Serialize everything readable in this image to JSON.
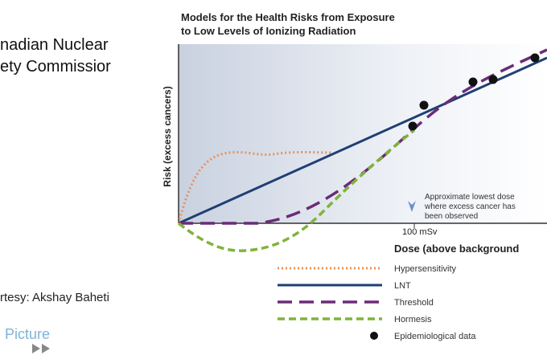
{
  "slide": {
    "heading": [
      "nadian Nuclear",
      "ety Commissior"
    ],
    "courtesy": "rtesy: Akshay Baheti",
    "logo": "Picture"
  },
  "diagram": {
    "title": [
      "Models for the Health Risks from Exposure",
      "to Low Levels of Ionizing Radiation"
    ],
    "y_label": "Risk (excess cancers)",
    "x_label": "Dose (above background",
    "x_marker": "100 mSv",
    "annotation": [
      "Approximate lowest dose",
      "where excess cancer has",
      "been observed"
    ],
    "legend": [
      "Hypersensitivity",
      "LNT",
      "Threshold",
      "Hormesis",
      "Epidemiological data"
    ]
  }
}
